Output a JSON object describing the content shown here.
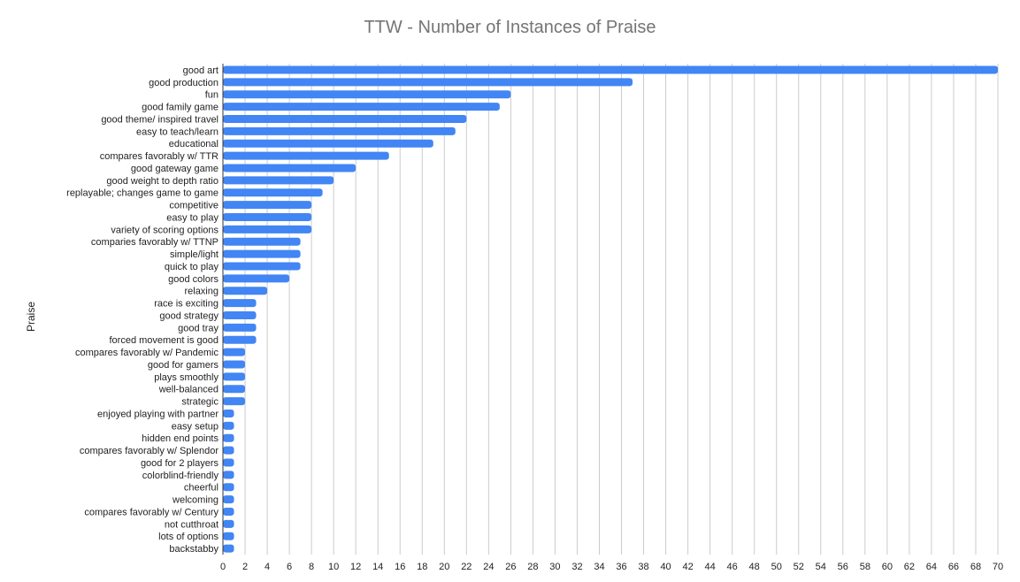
{
  "chart_data": {
    "type": "bar",
    "orientation": "horizontal",
    "title": "TTW - Number of Instances of Praise",
    "ylabel": "Praise",
    "xlabel": "",
    "xlim": [
      0,
      70
    ],
    "x_ticks": [
      0,
      2,
      4,
      6,
      8,
      10,
      12,
      14,
      16,
      18,
      20,
      22,
      24,
      26,
      28,
      30,
      32,
      34,
      36,
      38,
      40,
      42,
      44,
      46,
      48,
      50,
      52,
      54,
      56,
      58,
      60,
      62,
      64,
      66,
      68,
      70
    ],
    "grid": true,
    "bar_color": "#4285f4",
    "categories": [
      "good art",
      "good production",
      "fun",
      "good family game",
      "good theme/ inspired travel",
      "easy to teach/learn",
      "educational",
      "compares favorably w/ TTR",
      "good gateway game",
      "good weight to depth ratio",
      "replayable; changes game to game",
      "competitive",
      "easy to play",
      "variety of scoring options",
      "comparies favorably w/ TTNP",
      "simple/light",
      "quick to play",
      "good colors",
      "relaxing",
      "race is exciting",
      "good strategy",
      "good tray",
      "forced movement is good",
      "compares favorably w/ Pandemic",
      "good for gamers",
      "plays smoothly",
      "well-balanced",
      "strategic",
      "enjoyed playing with partner",
      "easy setup",
      "hidden end points",
      "compares favorably w/ Splendor",
      "good for 2 players",
      "colorblind-friendly",
      "cheerful",
      "welcoming",
      "compares favorably w/ Century",
      "not cutthroat",
      "lots of options",
      "backstabby"
    ],
    "values": [
      70,
      37,
      26,
      25,
      22,
      21,
      19,
      15,
      12,
      10,
      9,
      8,
      8,
      8,
      7,
      7,
      7,
      6,
      4,
      3,
      3,
      3,
      3,
      2,
      2,
      2,
      2,
      2,
      1,
      1,
      1,
      1,
      1,
      1,
      1,
      1,
      1,
      1,
      1,
      1
    ]
  }
}
